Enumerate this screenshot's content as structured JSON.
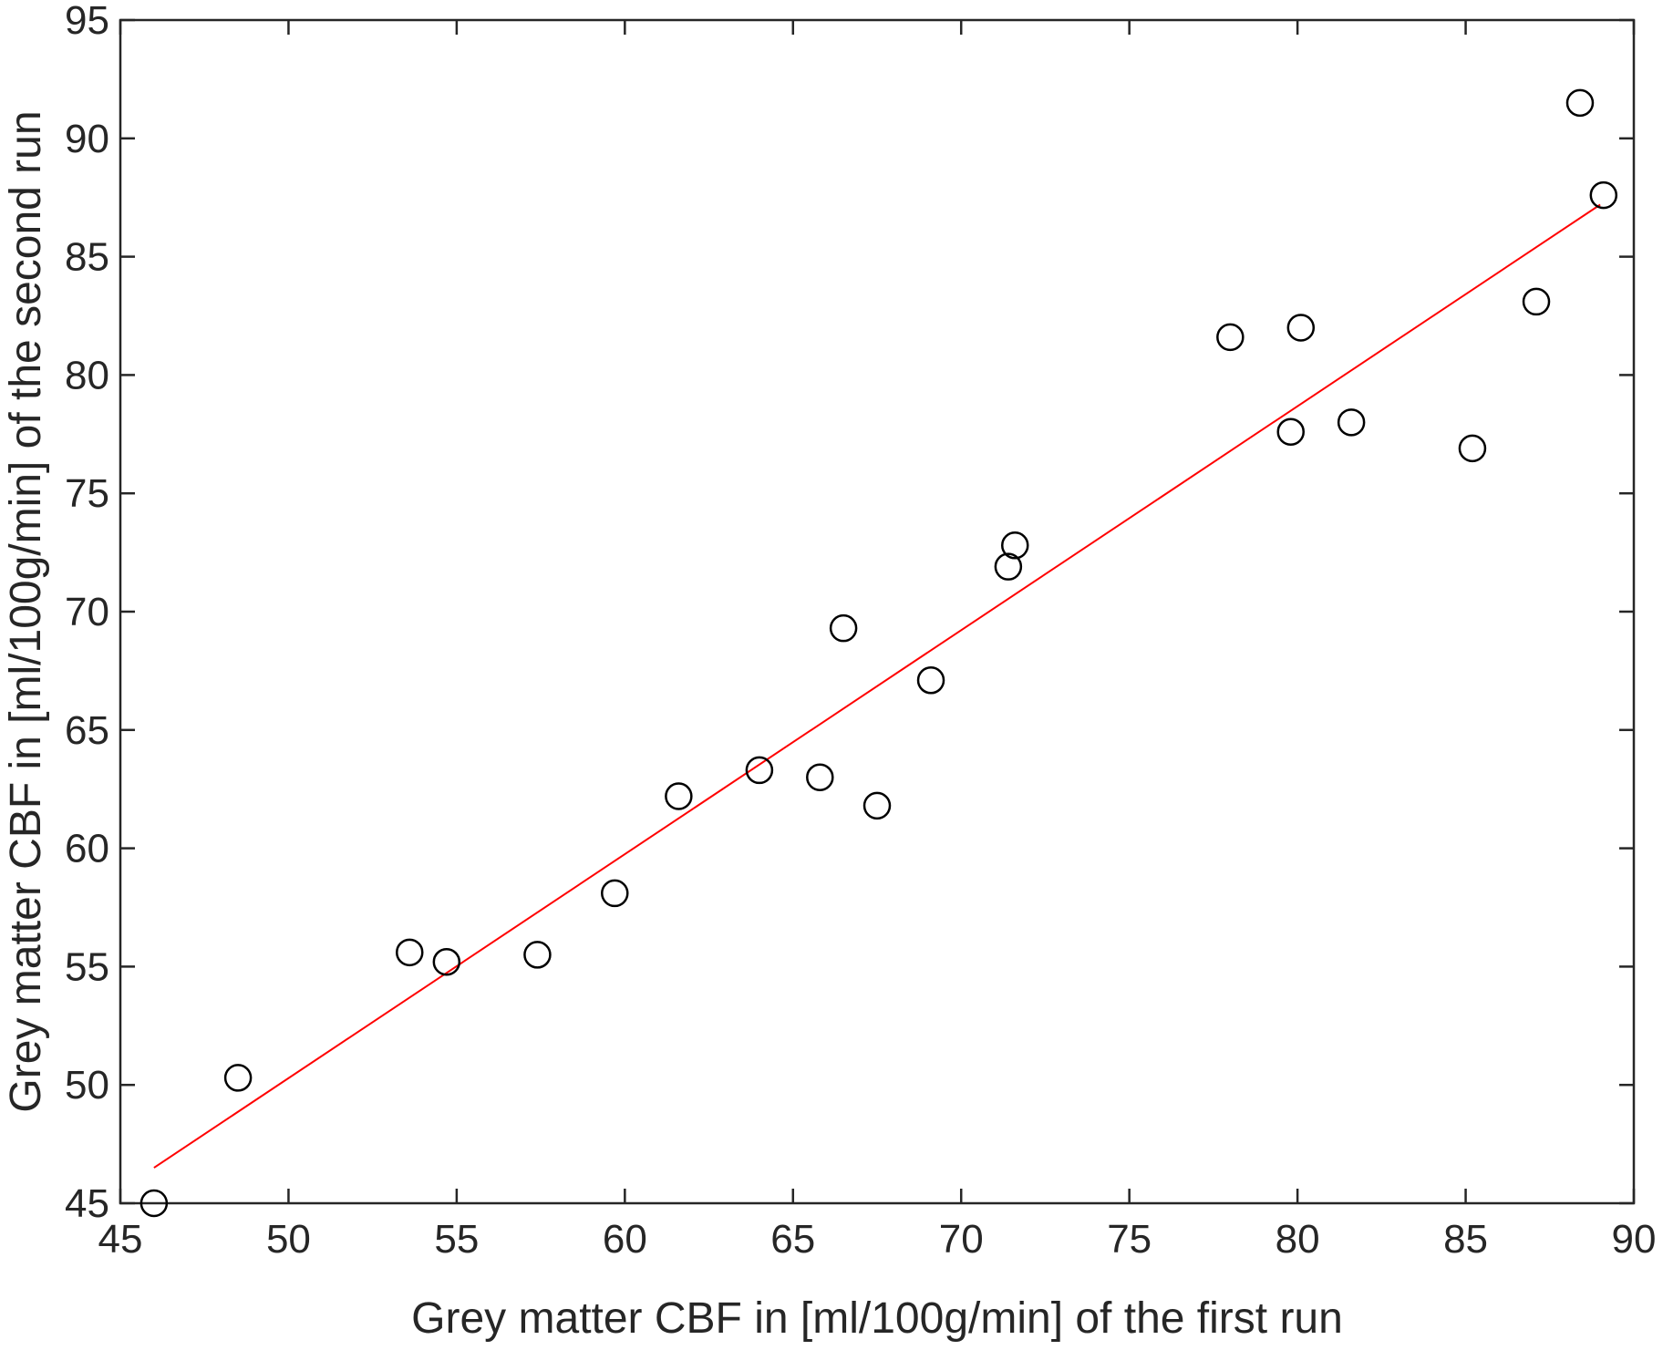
{
  "chart_data": {
    "type": "scatter",
    "title": "",
    "xlabel": "Grey matter CBF in [ml/100g/min] of the first run",
    "ylabel": "Grey matter CBF in [ml/100g/min] of the second run",
    "xlim": [
      45,
      90
    ],
    "ylim": [
      45,
      95
    ],
    "xticks": [
      45,
      50,
      55,
      60,
      65,
      70,
      75,
      80,
      85,
      90
    ],
    "yticks": [
      45,
      50,
      55,
      60,
      65,
      70,
      75,
      80,
      85,
      90,
      95
    ],
    "grid": false,
    "legend": "none",
    "marker_color": "#000000",
    "series": [
      {
        "marker": "open-circle",
        "points": [
          {
            "x": 46.0,
            "y": 45.0
          },
          {
            "x": 48.5,
            "y": 50.3
          },
          {
            "x": 53.6,
            "y": 55.6
          },
          {
            "x": 54.7,
            "y": 55.2
          },
          {
            "x": 57.4,
            "y": 55.5
          },
          {
            "x": 59.7,
            "y": 58.1
          },
          {
            "x": 61.6,
            "y": 62.2
          },
          {
            "x": 64.0,
            "y": 63.3
          },
          {
            "x": 65.8,
            "y": 63.0
          },
          {
            "x": 66.5,
            "y": 69.3
          },
          {
            "x": 67.5,
            "y": 61.8
          },
          {
            "x": 69.1,
            "y": 67.1
          },
          {
            "x": 71.4,
            "y": 71.9
          },
          {
            "x": 71.6,
            "y": 72.8
          },
          {
            "x": 78.0,
            "y": 81.6
          },
          {
            "x": 79.8,
            "y": 77.6
          },
          {
            "x": 80.1,
            "y": 82.0
          },
          {
            "x": 81.6,
            "y": 78.0
          },
          {
            "x": 85.2,
            "y": 76.9
          },
          {
            "x": 87.1,
            "y": 83.1
          },
          {
            "x": 88.4,
            "y": 91.5
          },
          {
            "x": 89.1,
            "y": 87.6
          }
        ]
      }
    ],
    "fit_line": {
      "color": "#ff0000",
      "x": [
        46.0,
        89.0
      ],
      "y": [
        46.5,
        87.2
      ]
    }
  }
}
